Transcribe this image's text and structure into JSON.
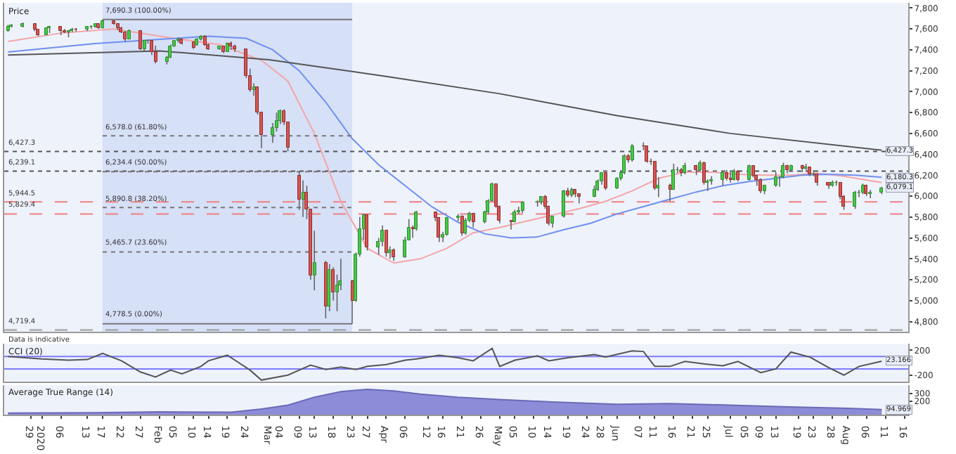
{
  "chart_data": [
    {
      "type": "candlestick",
      "title": "Price",
      "x": [
        "2019-12-23",
        "2019-12-24",
        "2019-12-27",
        "2019-12-30",
        "2019-12-31",
        "2020-01-02",
        "2020-01-03",
        "2020-01-06",
        "2020-01-07",
        "2020-01-08",
        "2020-01-09",
        "2020-01-10",
        "2020-01-13",
        "2020-01-14",
        "2020-01-15",
        "2020-01-16",
        "2020-01-17",
        "2020-01-20",
        "2020-01-21",
        "2020-01-22",
        "2020-01-23",
        "2020-01-24",
        "2020-01-27",
        "2020-01-28",
        "2020-01-29",
        "2020-01-30",
        "2020-01-31",
        "2020-02-03",
        "2020-02-04",
        "2020-02-05",
        "2020-02-06",
        "2020-02-07",
        "2020-02-10",
        "2020-02-11",
        "2020-02-12",
        "2020-02-13",
        "2020-02-14",
        "2020-02-17",
        "2020-02-18",
        "2020-02-19",
        "2020-02-20",
        "2020-02-21",
        "2020-02-24",
        "2020-02-25",
        "2020-02-26",
        "2020-02-27",
        "2020-02-28",
        "2020-03-02",
        "2020-03-03",
        "2020-03-04",
        "2020-03-05",
        "2020-03-06",
        "2020-03-09",
        "2020-03-10",
        "2020-03-11",
        "2020-03-12",
        "2020-03-13",
        "2020-03-16",
        "2020-03-17",
        "2020-03-18",
        "2020-03-19",
        "2020-03-20",
        "2020-03-23",
        "2020-03-24",
        "2020-03-25",
        "2020-03-26",
        "2020-03-27",
        "2020-03-30",
        "2020-03-31",
        "2020-04-01",
        "2020-04-02",
        "2020-04-03",
        "2020-04-06",
        "2020-04-07",
        "2020-04-08",
        "2020-04-09",
        "2020-04-14",
        "2020-04-15",
        "2020-04-16",
        "2020-04-17",
        "2020-04-20",
        "2020-04-21",
        "2020-04-22",
        "2020-04-23",
        "2020-04-24",
        "2020-04-27",
        "2020-04-28",
        "2020-04-29",
        "2020-04-30",
        "2020-05-01",
        "2020-05-04",
        "2020-05-05",
        "2020-05-06",
        "2020-05-07",
        "2020-05-11",
        "2020-05-12",
        "2020-05-13",
        "2020-05-14",
        "2020-05-15",
        "2020-05-18",
        "2020-05-19",
        "2020-05-20",
        "2020-05-21",
        "2020-05-22",
        "2020-05-26",
        "2020-05-27",
        "2020-05-28",
        "2020-05-29",
        "2020-06-01",
        "2020-06-02",
        "2020-06-03",
        "2020-06-04",
        "2020-06-05",
        "2020-06-08",
        "2020-06-09",
        "2020-06-10",
        "2020-06-11",
        "2020-06-12",
        "2020-06-15",
        "2020-06-16",
        "2020-06-17",
        "2020-06-18",
        "2020-06-19",
        "2020-06-22",
        "2020-06-23",
        "2020-06-24",
        "2020-06-25",
        "2020-06-26",
        "2020-06-29",
        "2020-06-30",
        "2020-07-01",
        "2020-07-02",
        "2020-07-03",
        "2020-07-06",
        "2020-07-07",
        "2020-07-08",
        "2020-07-09",
        "2020-07-10",
        "2020-07-13",
        "2020-07-14",
        "2020-07-15",
        "2020-07-16",
        "2020-07-17",
        "2020-07-20",
        "2020-07-21",
        "2020-07-22",
        "2020-07-23",
        "2020-07-24",
        "2020-07-27",
        "2020-07-28",
        "2020-07-29",
        "2020-07-30",
        "2020-07-31",
        "2020-08-03",
        "2020-08-04",
        "2020-08-05",
        "2020-08-06",
        "2020-08-07",
        "2020-08-10"
      ],
      "ohlc": [
        [
          7580,
          7640,
          7575,
          7624
        ],
        [
          7624,
          7645,
          7615,
          7633
        ],
        [
          7620,
          7660,
          7615,
          7648
        ],
        [
          7645,
          7650,
          7580,
          7588
        ],
        [
          7588,
          7595,
          7530,
          7542
        ],
        [
          7542,
          7615,
          7540,
          7604
        ],
        [
          7604,
          7630,
          7560,
          7622
        ],
        [
          7622,
          7625,
          7540,
          7576
        ],
        [
          7576,
          7600,
          7560,
          7574
        ],
        [
          7574,
          7590,
          7520,
          7575
        ],
        [
          7575,
          7610,
          7570,
          7599
        ],
        [
          7599,
          7610,
          7575,
          7588
        ],
        [
          7588,
          7625,
          7580,
          7618
        ],
        [
          7618,
          7635,
          7600,
          7622
        ],
        [
          7622,
          7650,
          7610,
          7642
        ],
        [
          7642,
          7650,
          7600,
          7610
        ],
        [
          7610,
          7690.3,
          7605,
          7675
        ],
        [
          7675,
          7680,
          7640,
          7651
        ],
        [
          7651,
          7655,
          7590,
          7610
        ],
        [
          7610,
          7620,
          7560,
          7571
        ],
        [
          7571,
          7580,
          7480,
          7507
        ],
        [
          7507,
          7595,
          7500,
          7586
        ],
        [
          7586,
          7590,
          7400,
          7412
        ],
        [
          7412,
          7490,
          7390,
          7481
        ],
        [
          7481,
          7500,
          7460,
          7484
        ],
        [
          7484,
          7490,
          7350,
          7381
        ],
        [
          7381,
          7440,
          7270,
          7286
        ],
        [
          7286,
          7340,
          7260,
          7326
        ],
        [
          7326,
          7450,
          7320,
          7439
        ],
        [
          7439,
          7490,
          7430,
          7483
        ],
        [
          7483,
          7520,
          7470,
          7505
        ],
        [
          7505,
          7510,
          7450,
          7466
        ],
        [
          7470,
          7480,
          7410,
          7425
        ],
        [
          7446,
          7510,
          7440,
          7500
        ],
        [
          7500,
          7540,
          7490,
          7534
        ],
        [
          7534,
          7540,
          7440,
          7452
        ],
        [
          7452,
          7460,
          7400,
          7409
        ],
        [
          7409,
          7440,
          7400,
          7433
        ],
        [
          7433,
          7440,
          7370,
          7382
        ],
        [
          7382,
          7470,
          7380,
          7457
        ],
        [
          7457,
          7480,
          7400,
          7436
        ],
        [
          7436,
          7450,
          7380,
          7404
        ],
        [
          7404,
          7410,
          7130,
          7157
        ],
        [
          7157,
          7220,
          7000,
          7018
        ],
        [
          7018,
          7080,
          6960,
          7042
        ],
        [
          7042,
          7050,
          6780,
          6796
        ],
        [
          6796,
          6800,
          6460,
          6581
        ],
        [
          6581,
          6700,
          6510,
          6654
        ],
        [
          6654,
          6800,
          6620,
          6718
        ],
        [
          6718,
          6830,
          6690,
          6815
        ],
        [
          6815,
          6830,
          6680,
          6705
        ],
        [
          6705,
          6710,
          6430,
          6463
        ],
        [
          6200,
          6240,
          5870,
          5966
        ],
        [
          5966,
          6150,
          5800,
          6036
        ],
        [
          6036,
          6100,
          5780,
          5876
        ],
        [
          5876,
          5880,
          5200,
          5237
        ],
        [
          5237,
          5670,
          5100,
          5367
        ],
        [
          5367,
          5380,
          4830,
          4946
        ],
        [
          4946,
          5350,
          4900,
          5295
        ],
        [
          5295,
          5320,
          5000,
          5080
        ],
        [
          5080,
          5250,
          4900,
          5152
        ],
        [
          5152,
          5400,
          5100,
          5191
        ],
        [
          5191,
          5200,
          4778.5,
          4994
        ],
        [
          4994,
          5460,
          4990,
          5446
        ],
        [
          5446,
          5800,
          5420,
          5688
        ],
        [
          5688,
          5830,
          5580,
          5816
        ],
        [
          5816,
          5820,
          5480,
          5510
        ],
        [
          5510,
          5600,
          5440,
          5564
        ],
        [
          5564,
          5720,
          5520,
          5672
        ],
        [
          5672,
          5680,
          5420,
          5455
        ],
        [
          5455,
          5520,
          5400,
          5480
        ],
        [
          5480,
          5500,
          5380,
          5416
        ],
        [
          5416,
          5610,
          5410,
          5582
        ],
        [
          5582,
          5780,
          5580,
          5704
        ],
        [
          5704,
          5720,
          5600,
          5678
        ],
        [
          5678,
          5860,
          5670,
          5843
        ],
        [
          5843,
          5850,
          5760,
          5791
        ],
        [
          5791,
          5800,
          5560,
          5598
        ],
        [
          5598,
          5660,
          5560,
          5629
        ],
        [
          5629,
          5800,
          5620,
          5787
        ],
        [
          5787,
          5830,
          5760,
          5812
        ],
        [
          5812,
          5815,
          5620,
          5641
        ],
        [
          5641,
          5790,
          5630,
          5771
        ],
        [
          5771,
          5850,
          5750,
          5826
        ],
        [
          5826,
          5830,
          5700,
          5752
        ],
        [
          5752,
          5860,
          5740,
          5847
        ],
        [
          5847,
          5970,
          5830,
          5959
        ],
        [
          5959,
          6130,
          5950,
          6115
        ],
        [
          6115,
          6120,
          5890,
          5901
        ],
        [
          5901,
          5910,
          5740,
          5763
        ],
        [
          5763,
          5770,
          5680,
          5754
        ],
        [
          5754,
          5870,
          5750,
          5849
        ],
        [
          5849,
          5900,
          5830,
          5854
        ],
        [
          5854,
          5950,
          5840,
          5935
        ],
        [
          5935,
          5960,
          5900,
          5940
        ],
        [
          5940,
          6000,
          5920,
          5994
        ],
        [
          5994,
          6010,
          5880,
          5904
        ],
        [
          5904,
          5910,
          5720,
          5742
        ],
        [
          5742,
          5810,
          5700,
          5800
        ],
        [
          5800,
          6060,
          5795,
          6049
        ],
        [
          6049,
          6080,
          5990,
          6003
        ],
        [
          6003,
          6080,
          5990,
          6068
        ],
        [
          6068,
          6070,
          5990,
          6015
        ],
        [
          6015,
          6020,
          5930,
          5993
        ],
        [
          5993,
          6100,
          5990,
          6068
        ],
        [
          6068,
          6160,
          6050,
          6145
        ],
        [
          6145,
          6230,
          6110,
          6219
        ],
        [
          6219,
          6230,
          6060,
          6077
        ],
        [
          6077,
          6180,
          6070,
          6166
        ],
        [
          6166,
          6240,
          6150,
          6220
        ],
        [
          6220,
          6400,
          6210,
          6382
        ],
        [
          6382,
          6400,
          6320,
          6341
        ],
        [
          6341,
          6500,
          6330,
          6484
        ],
        [
          6484,
          6516,
          6440,
          6473
        ],
        [
          6473,
          6480,
          6320,
          6336
        ],
        [
          6336,
          6360,
          6300,
          6330
        ],
        [
          6330,
          6335,
          6060,
          6077
        ],
        [
          6077,
          6180,
          5990,
          6105
        ],
        [
          6105,
          6120,
          5950,
          6064
        ],
        [
          6064,
          6310,
          6060,
          6243
        ],
        [
          6243,
          6280,
          6220,
          6254
        ],
        [
          6254,
          6270,
          6190,
          6224
        ],
        [
          6224,
          6320,
          6210,
          6293
        ],
        [
          6293,
          6300,
          6200,
          6245
        ],
        [
          6245,
          6340,
          6240,
          6320
        ],
        [
          6320,
          6330,
          6110,
          6124
        ],
        [
          6124,
          6160,
          6050,
          6147
        ],
        [
          6147,
          6190,
          6110,
          6159
        ],
        [
          6159,
          6240,
          6100,
          6226
        ],
        [
          6226,
          6250,
          6150,
          6170
        ],
        [
          6170,
          6230,
          6130,
          6158
        ],
        [
          6158,
          6260,
          6150,
          6240
        ],
        [
          6240,
          6250,
          6140,
          6157
        ],
        [
          6157,
          6300,
          6150,
          6286
        ],
        [
          6286,
          6290,
          6180,
          6190
        ],
        [
          6190,
          6200,
          6100,
          6157
        ],
        [
          6157,
          6170,
          6030,
          6050
        ],
        [
          6050,
          6110,
          6020,
          6095
        ],
        [
          6095,
          6230,
          6090,
          6176
        ],
        [
          6176,
          6190,
          6090,
          6180
        ],
        [
          6180,
          6320,
          6170,
          6293
        ],
        [
          6293,
          6300,
          6220,
          6251
        ],
        [
          6251,
          6300,
          6240,
          6290
        ],
        [
          6290,
          6300,
          6230,
          6262
        ],
        [
          6262,
          6310,
          6250,
          6270
        ],
        [
          6270,
          6280,
          6190,
          6208
        ],
        [
          6208,
          6250,
          6190,
          6212
        ],
        [
          6212,
          6220,
          6100,
          6124
        ],
        [
          6124,
          6130,
          6070,
          6105
        ],
        [
          6105,
          6150,
          6090,
          6129
        ],
        [
          6129,
          6150,
          6100,
          6132
        ],
        [
          6132,
          6135,
          5970,
          5990
        ],
        [
          5990,
          6010,
          5870,
          5898
        ],
        [
          5898,
          6050,
          5880,
          6033
        ],
        [
          6033,
          6060,
          5990,
          6036
        ],
        [
          6036,
          6120,
          6020,
          6105
        ],
        [
          6105,
          6110,
          6000,
          6027
        ],
        [
          6027,
          6060,
          5980,
          6032
        ],
        [
          6032,
          6090,
          6020,
          6079.1
        ]
      ],
      "series": [
        {
          "type": "line",
          "color": "#f4a6a6",
          "x": [
            "2019-12-23",
            "2020-01-06",
            "2020-01-20",
            "2020-02-03",
            "2020-02-17",
            "2020-02-28",
            "2020-03-06",
            "2020-03-13",
            "2020-03-20",
            "2020-03-27",
            "2020-04-03",
            "2020-04-10",
            "2020-04-17",
            "2020-04-24",
            "2020-05-01",
            "2020-05-08",
            "2020-05-15",
            "2020-05-22",
            "2020-05-29",
            "2020-06-05",
            "2020-06-12",
            "2020-06-19",
            "2020-06-26",
            "2020-07-03",
            "2020-07-10",
            "2020-07-17",
            "2020-07-24",
            "2020-07-31",
            "2020-08-10"
          ],
          "values": [
            7480,
            7560,
            7600,
            7520,
            7450,
            7300,
            7100,
            6600,
            5950,
            5500,
            5360,
            5400,
            5500,
            5650,
            5700,
            5760,
            5820,
            5880,
            5950,
            6050,
            6170,
            6230,
            6230,
            6210,
            6200,
            6200,
            6220,
            6190,
            6130
          ]
        },
        {
          "type": "line",
          "color": "#6f8ff0",
          "x": [
            "2019-12-23",
            "2020-01-15",
            "2020-02-01",
            "2020-02-14",
            "2020-02-24",
            "2020-03-02",
            "2020-03-09",
            "2020-03-16",
            "2020-03-23",
            "2020-03-30",
            "2020-04-06",
            "2020-04-13",
            "2020-04-20",
            "2020-04-27",
            "2020-05-04",
            "2020-05-11",
            "2020-05-18",
            "2020-05-25",
            "2020-06-01",
            "2020-06-08",
            "2020-06-15",
            "2020-06-22",
            "2020-06-29",
            "2020-07-06",
            "2020-07-13",
            "2020-07-20",
            "2020-07-27",
            "2020-08-03",
            "2020-08-10"
          ],
          "values": [
            7380,
            7460,
            7500,
            7530,
            7510,
            7400,
            7200,
            6900,
            6550,
            6300,
            6100,
            5900,
            5750,
            5640,
            5600,
            5610,
            5680,
            5740,
            5830,
            5900,
            5970,
            6040,
            6100,
            6140,
            6170,
            6200,
            6210,
            6200,
            6180.3
          ]
        },
        {
          "type": "line",
          "color": "#555555",
          "x": [
            "2019-12-23",
            "2020-02-01",
            "2020-03-01",
            "2020-04-01",
            "2020-05-01",
            "2020-06-01",
            "2020-07-01",
            "2020-08-10"
          ],
          "values": [
            7350,
            7390,
            7306,
            7146,
            6980,
            6770,
            6600,
            6440
          ]
        },
        {
          "type": "line",
          "color": "#777777",
          "line_style": "solid",
          "x": [
            "2020-01-17",
            "2020-03-23"
          ],
          "values": [
            7690.3,
            7690.3
          ]
        },
        {
          "type": "line",
          "color": "#777777",
          "line_style": "dotted",
          "x": [
            "2020-01-17",
            "2020-03-23"
          ],
          "values": [
            6578.0,
            6578.0
          ]
        },
        {
          "type": "line",
          "color": "#777777",
          "line_style": "dotted",
          "x": [
            "2020-01-17",
            "2020-03-23"
          ],
          "values": [
            6234.4,
            6234.4
          ]
        },
        {
          "type": "line",
          "color": "#777777",
          "line_style": "dotted",
          "x": [
            "2020-01-17",
            "2020-03-23"
          ],
          "values": [
            5890.8,
            5890.8
          ]
        },
        {
          "type": "line",
          "color": "#777777",
          "line_style": "dotted",
          "x": [
            "2020-01-17",
            "2020-03-23"
          ],
          "values": [
            5465.7,
            5465.7
          ]
        },
        {
          "type": "line",
          "color": "#777777",
          "line_style": "solid",
          "x": [
            "2020-01-17",
            "2020-03-23"
          ],
          "values": [
            4778.5,
            4778.5
          ]
        }
      ],
      "ref_lines": [
        {
          "axis": "y",
          "value": 6427.3,
          "label": "6,427.3",
          "color": "#555555",
          "line_style": "dotted"
        },
        {
          "axis": "y",
          "value": 6239.1,
          "label": "6,239.1",
          "color": "#555555",
          "line_style": "dotted"
        },
        {
          "axis": "y",
          "value": 5944.5,
          "label": "5,944.5",
          "color": "#f08080",
          "line_style": "dashed"
        },
        {
          "axis": "y",
          "value": 5829.4,
          "label": "5,829.4",
          "color": "#f08080",
          "line_style": "dashed"
        },
        {
          "axis": "y",
          "value": 4719.4,
          "label": "4,719.4",
          "color": "#999999",
          "line_style": "dashed"
        }
      ],
      "bands": [
        {
          "axis": "x",
          "from": "2020-01-17",
          "to": "2020-03-23",
          "color": "#d6e0f7"
        }
      ],
      "annotations": [
        {
          "text": "7,690.3 (100.00%)",
          "x": "2020-01-17",
          "y": 7690.3
        },
        {
          "text": "6,578.0 (61.80%)",
          "x": "2020-01-17",
          "y": 6578.0
        },
        {
          "text": "6,234.4 (50.00%)",
          "x": "2020-01-17",
          "y": 6234.4
        },
        {
          "text": "5,890.8 (38.20%)",
          "x": "2020-01-17",
          "y": 5890.8
        },
        {
          "text": "5,465.7 (23.60%)",
          "x": "2020-01-17",
          "y": 5465.7
        },
        {
          "text": "4,778.5 (0.00%)",
          "x": "2020-01-17",
          "y": 4778.5
        },
        {
          "text": "6,427.3",
          "x": "2020-08-10",
          "y": 6427.3
        },
        {
          "text": "6,180.3",
          "x": "2020-08-10",
          "y": 6180.3
        },
        {
          "text": "6,079.1",
          "x": "2020-08-10",
          "y": 6079.1
        },
        "Data is indicative"
      ],
      "xlim": [
        "2019-12-22",
        "2020-08-17"
      ],
      "ylim": [
        4700,
        7850
      ],
      "yticks": [
        {
          "value": 4800,
          "label": "4,800"
        },
        {
          "value": 5000,
          "label": "5,000"
        },
        {
          "value": 5200,
          "label": "5,200"
        },
        {
          "value": 5400,
          "label": "5,400"
        },
        {
          "value": 5600,
          "label": "5,600"
        },
        {
          "value": 5800,
          "label": "5,800"
        },
        {
          "value": 6000,
          "label": "6,000"
        },
        {
          "value": 6200,
          "label": "6,200"
        },
        {
          "value": 6400,
          "label": "6,400"
        },
        {
          "value": 6600,
          "label": "6,600"
        },
        {
          "value": 6800,
          "label": "6,800"
        },
        {
          "value": 7000,
          "label": "7,000"
        },
        {
          "value": 7200,
          "label": "7,200"
        },
        {
          "value": 7400,
          "label": "7,400"
        },
        {
          "value": 7600,
          "label": "7,600"
        },
        {
          "value": 7800,
          "label": "7,800"
        }
      ],
      "tick_labels": "y"
    },
    {
      "type": "line",
      "title": "CCI (20)",
      "series": [
        {
          "type": "line",
          "color": "#555555",
          "x": [
            "2019-12-23",
            "2020-01-01",
            "2020-01-08",
            "2020-01-13",
            "2020-01-17",
            "2020-01-22",
            "2020-01-27",
            "2020-01-31",
            "2020-02-04",
            "2020-02-07",
            "2020-02-12",
            "2020-02-14",
            "2020-02-19",
            "2020-02-21",
            "2020-02-25",
            "2020-02-28",
            "2020-03-06",
            "2020-03-09",
            "2020-03-12",
            "2020-03-16",
            "2020-03-20",
            "2020-03-24",
            "2020-03-27",
            "2020-04-01",
            "2020-04-06",
            "2020-04-09",
            "2020-04-15",
            "2020-04-20",
            "2020-04-24",
            "2020-04-29",
            "2020-05-01",
            "2020-05-05",
            "2020-05-11",
            "2020-05-14",
            "2020-05-19",
            "2020-05-26",
            "2020-05-29",
            "2020-06-05",
            "2020-06-08",
            "2020-06-11",
            "2020-06-15",
            "2020-06-19",
            "2020-06-24",
            "2020-06-29",
            "2020-07-03",
            "2020-07-09",
            "2020-07-13",
            "2020-07-17",
            "2020-07-22",
            "2020-07-27",
            "2020-07-31",
            "2020-08-04",
            "2020-08-10"
          ],
          "values": [
            100,
            60,
            40,
            50,
            150,
            30,
            -150,
            -230,
            -120,
            -180,
            -60,
            30,
            120,
            40,
            -120,
            -280,
            -200,
            -120,
            -40,
            -110,
            -70,
            -110,
            -60,
            -30,
            40,
            60,
            120,
            80,
            30,
            230,
            -60,
            40,
            110,
            30,
            80,
            130,
            90,
            190,
            180,
            -60,
            -60,
            20,
            -20,
            -50,
            20,
            -160,
            -100,
            170,
            90,
            -80,
            -200,
            -60,
            23.166
          ]
        }
      ],
      "ref_lines": [
        {
          "axis": "y",
          "value": 100,
          "color": "#7b7bff"
        },
        {
          "axis": "y",
          "value": -100,
          "color": "#7b7bff"
        }
      ],
      "annotations": [
        {
          "text": "23.166",
          "x": "2020-08-10",
          "y": 23.166
        }
      ],
      "xlim": [
        "2019-12-22",
        "2020-08-17"
      ],
      "ylim": [
        -300,
        300
      ],
      "yticks": [
        200,
        -200
      ],
      "tick_labels": "y"
    },
    {
      "type": "area",
      "title": "Average True Range (14)",
      "series": [
        {
          "type": "area",
          "color": "#8c8cd8",
          "x": [
            "2019-12-23",
            "2020-01-15",
            "2020-02-01",
            "2020-02-20",
            "2020-02-28",
            "2020-03-06",
            "2020-03-13",
            "2020-03-20",
            "2020-03-27",
            "2020-04-03",
            "2020-04-10",
            "2020-04-20",
            "2020-05-01",
            "2020-05-15",
            "2020-06-01",
            "2020-06-15",
            "2020-07-01",
            "2020-07-15",
            "2020-08-01",
            "2020-08-10"
          ],
          "values": [
            50,
            55,
            65,
            60,
            100,
            150,
            250,
            320,
            350,
            330,
            290,
            250,
            220,
            190,
            160,
            170,
            150,
            130,
            110,
            94.969
          ]
        }
      ],
      "annotations": [
        {
          "text": "94.969",
          "x": "2020-08-10",
          "y": 94.969
        }
      ],
      "xlim": [
        "2019-12-22",
        "2020-08-17"
      ],
      "ylim": [
        30,
        400
      ],
      "yticks": [
        200,
        300
      ],
      "xticks": [
        {
          "value": "2019-12-29",
          "label": "29"
        },
        {
          "value": "2020-01-01",
          "label": "2020"
        },
        {
          "value": "2020-01-06",
          "label": "06"
        },
        {
          "value": "2020-01-13",
          "label": "13"
        },
        {
          "value": "2020-01-17",
          "label": "17"
        },
        {
          "value": "2020-01-22",
          "label": "22"
        },
        {
          "value": "2020-01-27",
          "label": "27"
        },
        {
          "value": "2020-02-01",
          "label": "Feb"
        },
        {
          "value": "2020-02-05",
          "label": "05"
        },
        {
          "value": "2020-02-10",
          "label": "10"
        },
        {
          "value": "2020-02-14",
          "label": "14"
        },
        {
          "value": "2020-02-19",
          "label": "19"
        },
        {
          "value": "2020-02-24",
          "label": "24"
        },
        {
          "value": "2020-03-01",
          "label": "Mar"
        },
        {
          "value": "2020-03-04",
          "label": "04"
        },
        {
          "value": "2020-03-09",
          "label": "09"
        },
        {
          "value": "2020-03-13",
          "label": "13"
        },
        {
          "value": "2020-03-18",
          "label": "18"
        },
        {
          "value": "2020-03-23",
          "label": "23"
        },
        {
          "value": "2020-03-27",
          "label": "27"
        },
        {
          "value": "2020-04-01",
          "label": "Apr"
        },
        {
          "value": "2020-04-06",
          "label": "06"
        },
        {
          "value": "2020-04-12",
          "label": "12"
        },
        {
          "value": "2020-04-16",
          "label": "16"
        },
        {
          "value": "2020-04-21",
          "label": "21"
        },
        {
          "value": "2020-04-26",
          "label": "26"
        },
        {
          "value": "2020-05-01",
          "label": "May"
        },
        {
          "value": "2020-05-05",
          "label": "05"
        },
        {
          "value": "2020-05-10",
          "label": "10"
        },
        {
          "value": "2020-05-14",
          "label": "14"
        },
        {
          "value": "2020-05-19",
          "label": "19"
        },
        {
          "value": "2020-05-24",
          "label": "24"
        },
        {
          "value": "2020-05-28",
          "label": "28"
        },
        {
          "value": "2020-06-01",
          "label": "Jun"
        },
        {
          "value": "2020-06-07",
          "label": "07"
        },
        {
          "value": "2020-06-11",
          "label": "11"
        },
        {
          "value": "2020-06-16",
          "label": "16"
        },
        {
          "value": "2020-06-21",
          "label": "21"
        },
        {
          "value": "2020-06-25",
          "label": "25"
        },
        {
          "value": "2020-07-01",
          "label": "Jul"
        },
        {
          "value": "2020-07-05",
          "label": "05"
        },
        {
          "value": "2020-07-09",
          "label": "09"
        },
        {
          "value": "2020-07-13",
          "label": "13"
        },
        {
          "value": "2020-07-19",
          "label": "19"
        },
        {
          "value": "2020-07-23",
          "label": "23"
        },
        {
          "value": "2020-07-28",
          "label": "28"
        },
        {
          "value": "2020-08-01",
          "label": "Aug"
        },
        {
          "value": "2020-08-06",
          "label": "06"
        },
        {
          "value": "2020-08-11",
          "label": "11"
        },
        {
          "value": "2020-08-16",
          "label": "16"
        }
      ]
    }
  ]
}
